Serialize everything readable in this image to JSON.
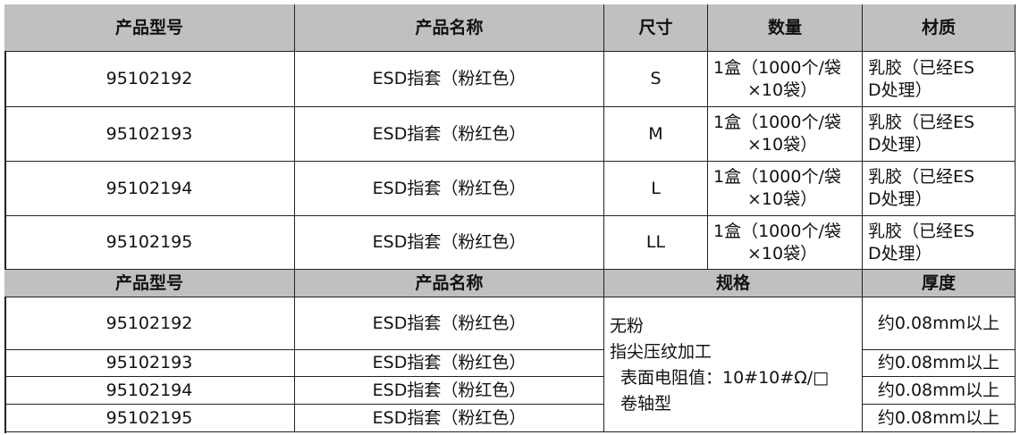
{
  "table1": {
    "headers": [
      "产品型号",
      "产品名称",
      "尺寸",
      "数量",
      "材质"
    ],
    "rows": [
      {
        "code": "95102192",
        "name": "ESD指套（粉红色）",
        "size": "S",
        "qty": [
          "1盒（1000个/袋",
          "×10袋）"
        ],
        "material": [
          "乳胶（已经ES",
          "D处理）"
        ]
      },
      {
        "code": "95102193",
        "name": "ESD指套（粉红色）",
        "size": "M",
        "qty": [
          "1盒（1000个/袋",
          "×10袋）"
        ],
        "material": [
          "乳胶（已经ES",
          "D处理）"
        ]
      },
      {
        "code": "95102194",
        "name": "ESD指套（粉红色）",
        "size": "L",
        "qty": [
          "1盒（1000个/袋",
          "×10袋）"
        ],
        "material": [
          "乳胶（已经ES",
          "D处理）"
        ]
      },
      {
        "code": "95102195",
        "name": "ESD指套（粉红色）",
        "size": "LL",
        "qty": [
          "1盒（1000个/袋",
          "×10袋）"
        ],
        "material": [
          "乳胶（已经ES",
          "D处理）"
        ]
      }
    ]
  },
  "table2": {
    "headers": [
      "产品型号",
      "产品名称",
      "规格",
      "厚度"
    ],
    "rows": [
      {
        "code": "95102192",
        "name": "ESD指套（粉红色）",
        "thickness": "约0.08mm以上"
      },
      {
        "code": "95102193",
        "name": "ESD指套（粉红色）",
        "thickness": "约0.08mm以上"
      },
      {
        "code": "95102194",
        "name": "ESD指套（粉红色）",
        "thickness": "约0.08mm以上"
      },
      {
        "code": "95102195",
        "name": "ESD指套（粉红色）",
        "thickness": "约0.08mm以上"
      }
    ],
    "spec": [
      "无粉",
      "指尖压纹加工",
      "表面电阻值：10#10#Ω/□",
      "卷轴型"
    ]
  },
  "colors": {
    "header_bg": "#c0c0c0",
    "border": "#222222"
  }
}
